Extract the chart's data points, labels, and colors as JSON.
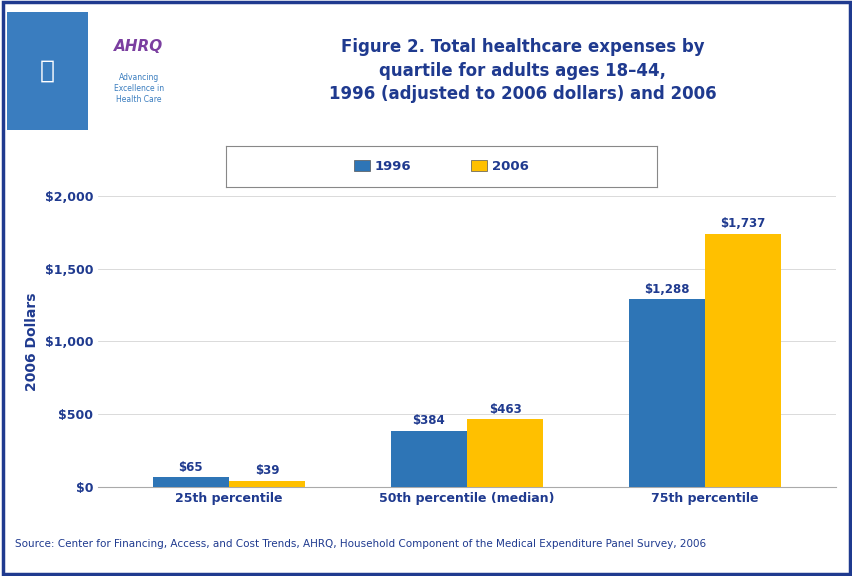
{
  "title": "Figure 2. Total healthcare expenses by\nquartile for adults ages 18–44,\n1996 (adjusted to 2006 dollars) and 2006",
  "categories": [
    "25th percentile",
    "50th percentile (median)",
    "75th percentile"
  ],
  "values_1996": [
    65,
    384,
    1288
  ],
  "values_2006": [
    39,
    463,
    1737
  ],
  "labels_1996": [
    "$65",
    "$384",
    "$1,288"
  ],
  "labels_2006": [
    "$39",
    "$463",
    "$1,737"
  ],
  "color_1996": "#2E75B6",
  "color_2006": "#FFC000",
  "ylabel": "2006 Dollars",
  "ylim": [
    0,
    2000
  ],
  "yticks": [
    0,
    500,
    1000,
    1500,
    2000
  ],
  "ytick_labels": [
    "$0",
    "$500",
    "$1,000",
    "$1,500",
    "$2,000"
  ],
  "legend_labels": [
    "1996",
    "2006"
  ],
  "source_text": "Source: Center for Financing, Access, and Cost Trends, AHRQ, Household Component of the Medical Expenditure Panel Survey, 2006",
  "bar_width": 0.32,
  "background_color": "#FFFFFF",
  "title_color": "#1F3A8F",
  "source_color": "#1F3A8F",
  "header_bar_color": "#1F3A8F",
  "title_fontsize": 12,
  "ylabel_fontsize": 10,
  "tick_fontsize": 9,
  "annotation_fontsize": 8.5,
  "legend_fontsize": 9.5,
  "source_fontsize": 7.5,
  "logo_bg_left": "#3A7DBF",
  "logo_bg_right": "#FFFFFF",
  "ahrq_text_color": "#7B3FA0",
  "ahrq_sub_color": "#3A7DBF",
  "border_color": "#1F3A8F"
}
